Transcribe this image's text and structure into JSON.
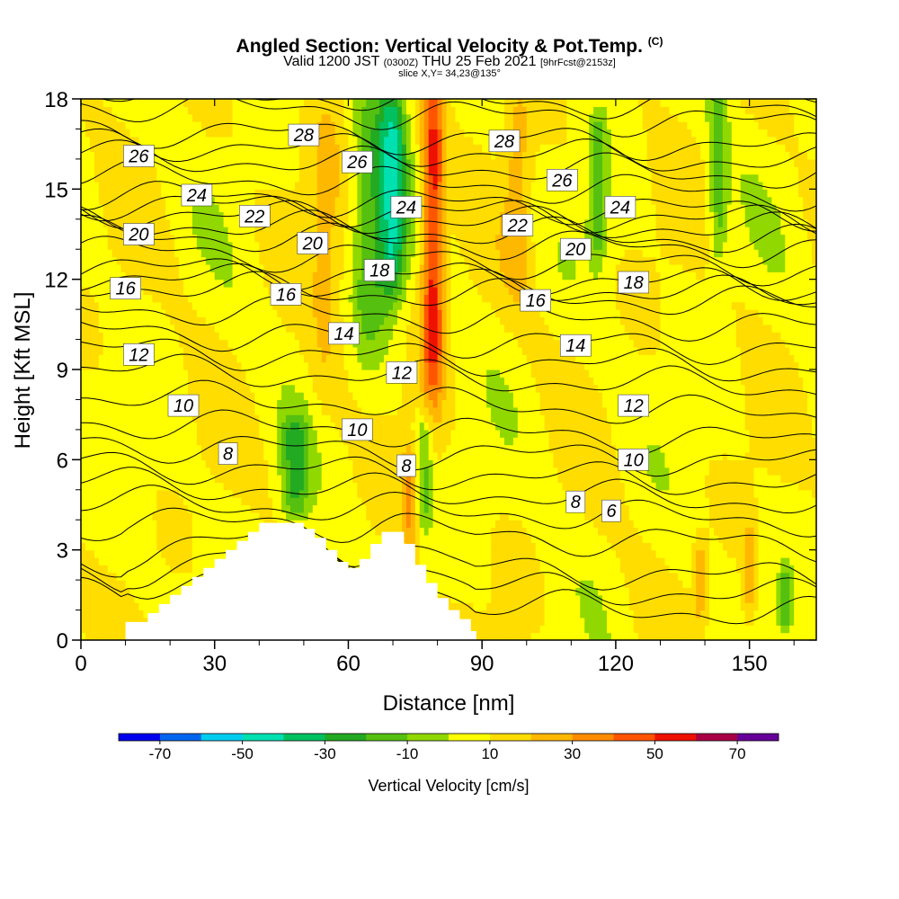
{
  "title": {
    "main": "Angled Section: Vertical Velocity & Pot.Temp.",
    "copyright": "(C)",
    "valid_prefix": "Valid 1200 JST",
    "valid_utc": "(0300Z)",
    "valid_date": "THU 25 Feb 2021",
    "valid_fcst": "[9hrFcst@2153z]",
    "slice": "slice X,Y= 34,23@135°"
  },
  "chart_data": {
    "type": "heatmap",
    "title": "Angled Section: Vertical Velocity & Pot.Temp.",
    "xlabel": "Distance [nm]",
    "ylabel": "Height [Kft MSL]",
    "xlim": [
      0,
      165
    ],
    "ylim": [
      0,
      18
    ],
    "xticks": [
      0,
      30,
      60,
      90,
      120,
      150
    ],
    "yticks": [
      0,
      3,
      6,
      9,
      12,
      15,
      18
    ],
    "colorbar": {
      "label": "Vertical Velocity [cm/s]",
      "tick_labels": [
        "-70",
        "-50",
        "-30",
        "-10",
        "10",
        "30",
        "50",
        "70"
      ],
      "boundaries": [
        -80,
        -70,
        -60,
        -50,
        -40,
        -30,
        -20,
        -10,
        0,
        10,
        20,
        30,
        40,
        50,
        60,
        70,
        80
      ],
      "colors": [
        "#0000ee",
        "#0066ee",
        "#00ccf0",
        "#00e0b0",
        "#00c060",
        "#22aa22",
        "#55c010",
        "#90d800",
        "#ffff00",
        "#ffdd00",
        "#ffb800",
        "#ff8c00",
        "#ff5500",
        "#ee1100",
        "#aa0044",
        "#660099"
      ]
    },
    "terrain": {
      "x": [
        10,
        15,
        17.5,
        20,
        22.5,
        25,
        27.5,
        30,
        32.5,
        35,
        37.5,
        40,
        42.5,
        45,
        47.5,
        50,
        52.5,
        55,
        57.5,
        60,
        62.5,
        65,
        67.5,
        70,
        72.5,
        75,
        77.5,
        80,
        82.5,
        85,
        87.5
      ],
      "height_kft": [
        0.6,
        0.9,
        1.2,
        1.5,
        1.8,
        2.1,
        2.4,
        2.7,
        3.0,
        3.3,
        3.6,
        3.9,
        3.9,
        3.9,
        3.9,
        3.7,
        3.4,
        3.0,
        2.6,
        2.4,
        2.7,
        3.2,
        3.6,
        3.6,
        3.2,
        2.5,
        1.9,
        1.4,
        1.0,
        0.7,
        0.3
      ]
    },
    "vertical_velocity_features": [
      {
        "x": 55,
        "width": 4,
        "z_from": 8,
        "z_to": 18,
        "value": 20
      },
      {
        "x": 65,
        "width": 4,
        "z_from": 10,
        "z_to": 18,
        "value": -15
      },
      {
        "x": 70,
        "width": 3,
        "z_from": 12,
        "z_to": 18,
        "value": -35
      },
      {
        "x": 79,
        "width": 2.5,
        "z_from": 8.5,
        "z_to": 18,
        "value": 55
      },
      {
        "x": 98,
        "width": 3,
        "z_from": 12,
        "z_to": 18,
        "value": 25
      },
      {
        "x": 116,
        "width": 2,
        "z_from": 13,
        "z_to": 17,
        "value": -15
      },
      {
        "x": 143,
        "width": 2,
        "z_from": 13,
        "z_to": 18,
        "value": -15
      },
      {
        "x": 74,
        "width": 2,
        "z_from": 3.5,
        "z_to": 6,
        "value": 30
      },
      {
        "x": 48,
        "width": 3,
        "z_from": 4.5,
        "z_to": 7,
        "value": -20
      },
      {
        "x": 77,
        "width": 2,
        "z_from": 4,
        "z_to": 7,
        "value": -15
      },
      {
        "x": 139,
        "width": 1.5,
        "z_from": 1,
        "z_to": 3,
        "value": 25
      },
      {
        "x": 150,
        "width": 1.5,
        "z_from": 1,
        "z_to": 3.5,
        "value": 25
      },
      {
        "x": 158,
        "width": 1.5,
        "z_from": 0.8,
        "z_to": 2,
        "value": -15
      }
    ],
    "theta_contour_labels": [
      {
        "text": "28",
        "x": 50,
        "z": 16.8
      },
      {
        "text": "26",
        "x": 13,
        "z": 16.1
      },
      {
        "text": "26",
        "x": 62,
        "z": 15.9
      },
      {
        "text": "24",
        "x": 26,
        "z": 14.8
      },
      {
        "text": "24",
        "x": 73,
        "z": 14.4
      },
      {
        "text": "22",
        "x": 39,
        "z": 14.1
      },
      {
        "text": "20",
        "x": 13,
        "z": 13.5
      },
      {
        "text": "20",
        "x": 52,
        "z": 13.2
      },
      {
        "text": "18",
        "x": 67,
        "z": 12.3
      },
      {
        "text": "16",
        "x": 10,
        "z": 11.7
      },
      {
        "text": "16",
        "x": 46,
        "z": 11.5
      },
      {
        "text": "14",
        "x": 59,
        "z": 10.2
      },
      {
        "text": "12",
        "x": 13,
        "z": 9.5
      },
      {
        "text": "12",
        "x": 72,
        "z": 8.9
      },
      {
        "text": "10",
        "x": 23,
        "z": 7.8
      },
      {
        "text": "10",
        "x": 62,
        "z": 7.0
      },
      {
        "text": "8",
        "x": 33,
        "z": 6.2
      },
      {
        "text": "8",
        "x": 73,
        "z": 5.8
      },
      {
        "text": "28",
        "x": 95,
        "z": 16.6
      },
      {
        "text": "26",
        "x": 108,
        "z": 15.3
      },
      {
        "text": "24",
        "x": 121,
        "z": 14.4
      },
      {
        "text": "22",
        "x": 98,
        "z": 13.8
      },
      {
        "text": "20",
        "x": 111,
        "z": 13.0
      },
      {
        "text": "18",
        "x": 124,
        "z": 11.9
      },
      {
        "text": "16",
        "x": 102,
        "z": 11.3
      },
      {
        "text": "14",
        "x": 111,
        "z": 9.8
      },
      {
        "text": "12",
        "x": 124,
        "z": 7.8
      },
      {
        "text": "10",
        "x": 124,
        "z": 6.0
      },
      {
        "text": "8",
        "x": 111,
        "z": 4.6
      },
      {
        "text": "6",
        "x": 119,
        "z": 4.3
      }
    ]
  }
}
